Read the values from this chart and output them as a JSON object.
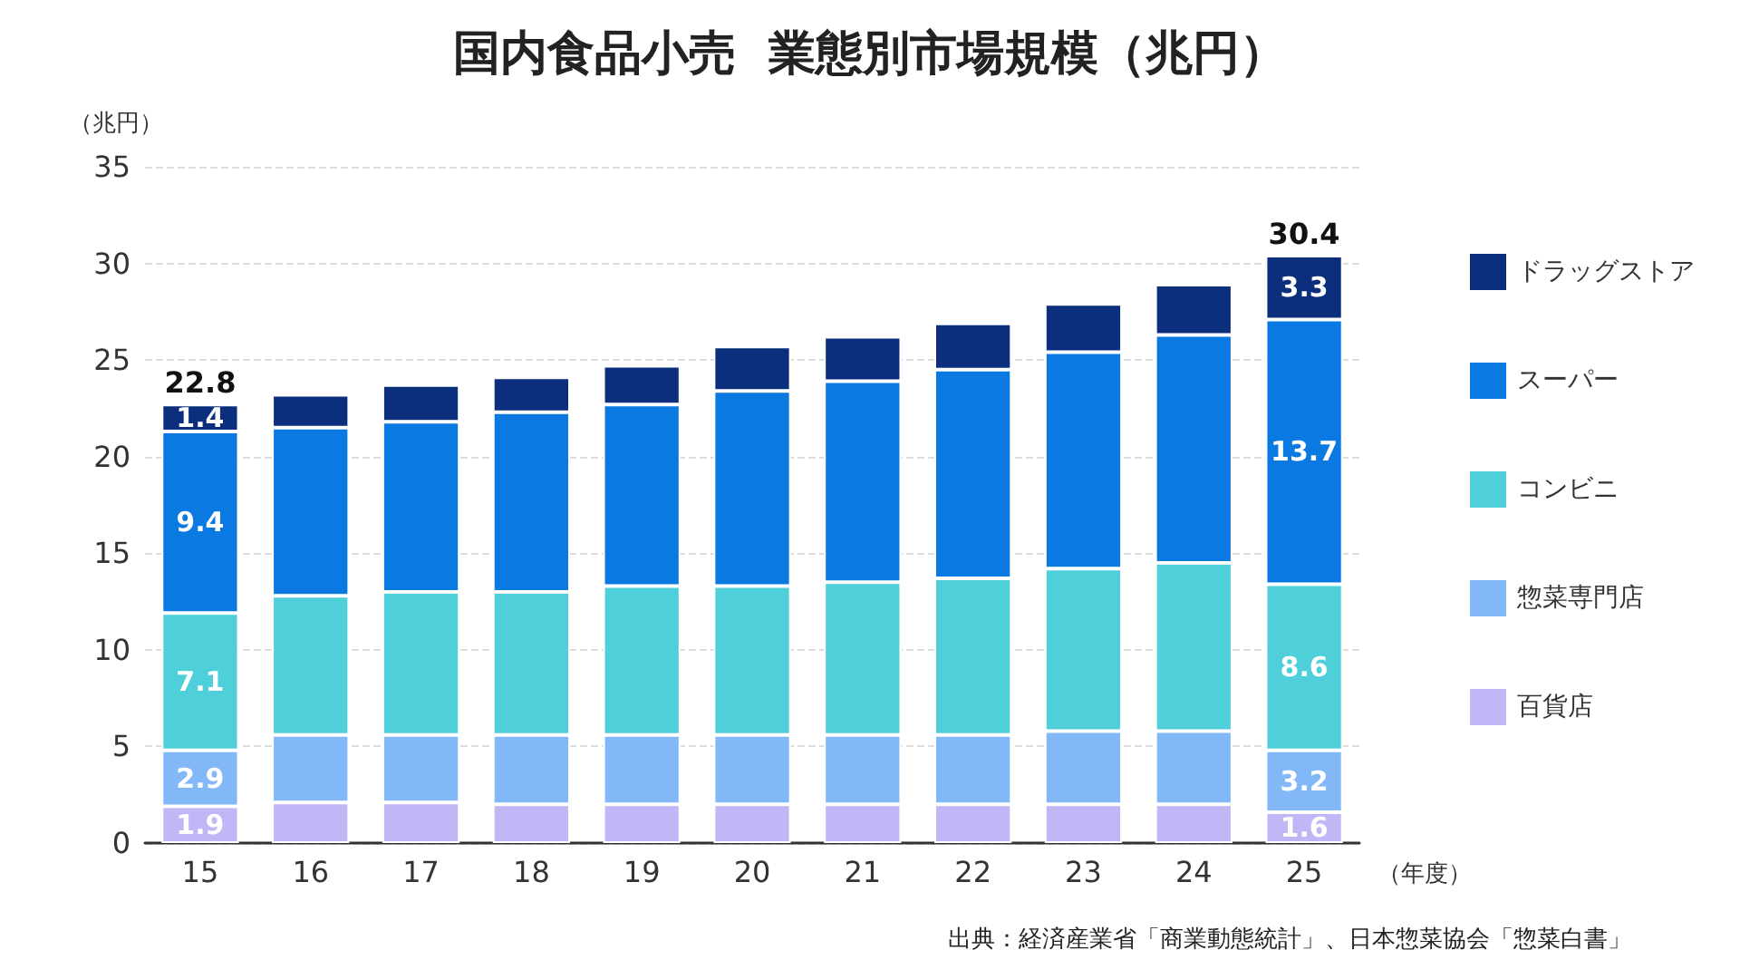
{
  "chart_data": {
    "type": "bar",
    "title": "国内食品小売  業態別市場規模（兆円）",
    "ylabel": "（兆円）",
    "xlabel": "（年度）",
    "categories": [
      "15",
      "16",
      "17",
      "18",
      "19",
      "20",
      "21",
      "22",
      "23",
      "24",
      "25"
    ],
    "stacked": true,
    "ylim": [
      0,
      35
    ],
    "yticks": [
      0,
      5,
      10,
      15,
      20,
      25,
      30,
      35
    ],
    "grid": "y",
    "legend": "right",
    "series": [
      {
        "name": "百貨店",
        "color": "#c2b6f6",
        "values": [
          1.9,
          2.1,
          2.1,
          2.0,
          2.0,
          2.0,
          2.0,
          2.0,
          2.0,
          2.0,
          1.6
        ],
        "value_labels": [
          "1.9",
          null,
          null,
          null,
          null,
          null,
          null,
          null,
          null,
          null,
          "1.6"
        ]
      },
      {
        "name": "惣菜専門店",
        "color": "#82b8f8",
        "values": [
          2.9,
          3.5,
          3.5,
          3.6,
          3.6,
          3.6,
          3.6,
          3.6,
          3.8,
          3.8,
          3.2
        ],
        "value_labels": [
          "2.9",
          null,
          null,
          null,
          null,
          null,
          null,
          null,
          null,
          null,
          "3.2"
        ]
      },
      {
        "name": "コンビニ",
        "color": "#4ecfd9",
        "values": [
          7.1,
          7.2,
          7.4,
          7.4,
          7.7,
          7.7,
          7.9,
          8.1,
          8.4,
          8.7,
          8.6
        ],
        "value_labels": [
          "7.1",
          null,
          null,
          null,
          null,
          null,
          null,
          null,
          null,
          null,
          "8.6"
        ]
      },
      {
        "name": "スーパー",
        "color": "#0a7ae2",
        "values": [
          9.4,
          8.7,
          8.8,
          9.3,
          9.4,
          10.1,
          10.4,
          10.8,
          11.2,
          11.8,
          13.7
        ],
        "value_labels": [
          "9.4",
          null,
          null,
          null,
          null,
          null,
          null,
          null,
          null,
          null,
          "13.7"
        ]
      },
      {
        "name": "ドラッグストア",
        "color": "#0b2f7c",
        "values": [
          1.4,
          1.7,
          1.9,
          1.8,
          2.0,
          2.3,
          2.3,
          2.4,
          2.5,
          2.6,
          3.3
        ],
        "value_labels": [
          "1.4",
          null,
          null,
          null,
          null,
          null,
          null,
          null,
          null,
          null,
          "3.3"
        ]
      }
    ],
    "totals": [
      "22.8",
      null,
      null,
      null,
      null,
      null,
      null,
      null,
      null,
      null,
      "30.4"
    ],
    "annotations": [
      "出典：経済産業省「商業動態統計」、日本惣菜協会「惣菜白書」"
    ]
  }
}
